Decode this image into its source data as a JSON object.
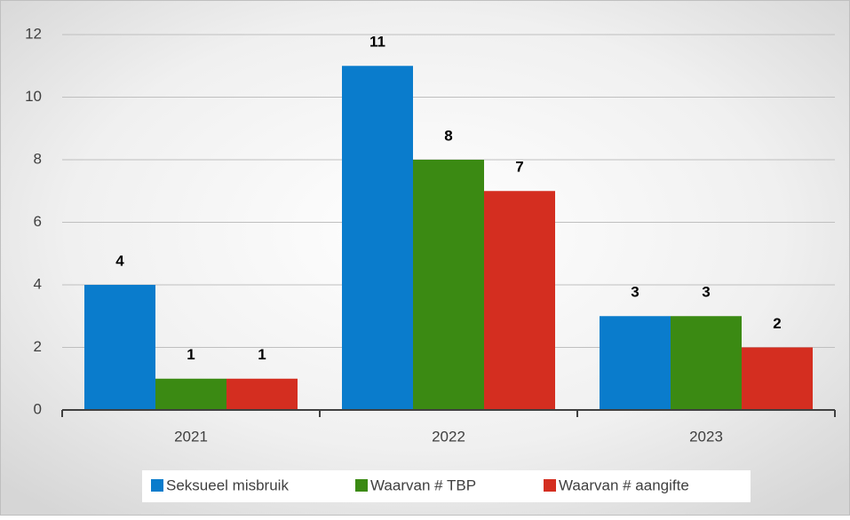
{
  "chart_data": {
    "type": "bar",
    "categories": [
      "2021",
      "2022",
      "2023"
    ],
    "series": [
      {
        "name": "Seksueel misbruik",
        "color": "#0a7ccc",
        "values": [
          4,
          11,
          3
        ]
      },
      {
        "name": "Waarvan # TBP",
        "color": "#3b8a13",
        "values": [
          1,
          8,
          3
        ]
      },
      {
        "name": "Waarvan # aangifte",
        "color": "#d42e20",
        "values": [
          1,
          7,
          2
        ]
      }
    ],
    "ylim": [
      0,
      12
    ],
    "yticks": [
      0,
      2,
      4,
      6,
      8,
      10,
      12
    ],
    "grid": true,
    "legend": "bottom"
  }
}
